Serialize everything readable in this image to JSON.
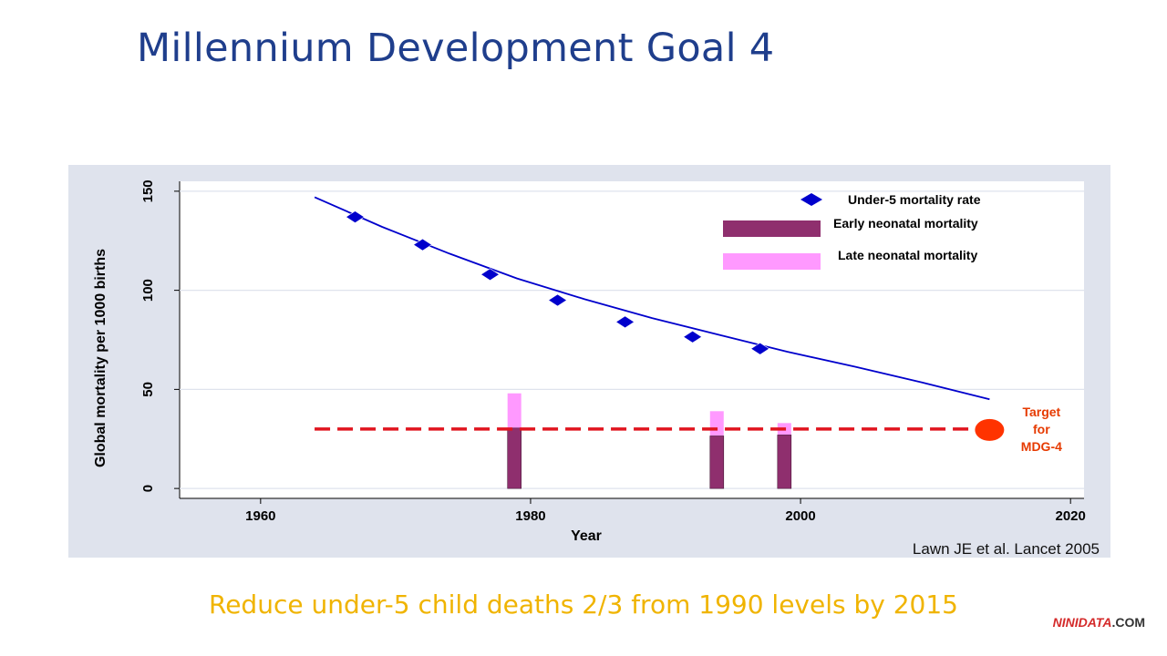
{
  "slide": {
    "title": "Millennium Development Goal 4",
    "subtitle": "Reduce under-5 child deaths 2/3 from 1990 levels by 2015",
    "citation": "Lawn JE et al. Lancet 2005",
    "watermark": {
      "brand": "NINIDATA",
      "tld": ".COM"
    }
  },
  "colors": {
    "title": "#1f3e8c",
    "series_line": "#0000cc",
    "early_neonatal": "#8f2f6e",
    "late_neonatal": "#ff99ff",
    "target": "#ff3300",
    "target_text": "#e63a00",
    "subtitle": "#f0b400"
  },
  "chart_data": {
    "type": "line",
    "xlabel": "Year",
    "ylabel": "Global mortality per 1000 births",
    "xlim": [
      1954,
      2021
    ],
    "ylim": [
      -5,
      155
    ],
    "x_ticks": [
      1960,
      1980,
      2000,
      2020
    ],
    "y_ticks": [
      0,
      50,
      100,
      150
    ],
    "grid": true,
    "legend_position": "top-right",
    "series": [
      {
        "name": "Under-5 mortality rate",
        "marker": "diamond",
        "points": [
          [
            1967,
            137
          ],
          [
            1972,
            123
          ],
          [
            1977,
            108
          ],
          [
            1982,
            95
          ],
          [
            1987,
            84
          ],
          [
            1992,
            76.5
          ],
          [
            1997,
            70.5
          ]
        ],
        "trend_line": [
          [
            1964,
            147
          ],
          [
            1969,
            132
          ],
          [
            1974,
            118.5
          ],
          [
            1979,
            106
          ],
          [
            1984,
            95.5
          ],
          [
            1989,
            86
          ],
          [
            1994,
            77.5
          ],
          [
            1999,
            69
          ],
          [
            2004,
            61.5
          ],
          [
            2009,
            53.5
          ],
          [
            2014,
            45
          ]
        ]
      },
      {
        "name": "Early neonatal mortality",
        "type": "bar",
        "bars": [
          {
            "x": 1978.8,
            "value": 30.5
          },
          {
            "x": 1993.8,
            "value": 26.5
          },
          {
            "x": 1998.8,
            "value": 27
          }
        ]
      },
      {
        "name": "Late neonatal mortality",
        "type": "bar",
        "bars": [
          {
            "x": 1978.8,
            "value": 48
          },
          {
            "x": 1993.8,
            "value": 39
          },
          {
            "x": 1998.8,
            "value": 33
          }
        ]
      }
    ],
    "target": {
      "value": 30,
      "x_range": [
        1964,
        2014
      ],
      "marker_x": 2014,
      "label_lines": [
        "Target",
        "for",
        "MDG-4"
      ]
    }
  }
}
